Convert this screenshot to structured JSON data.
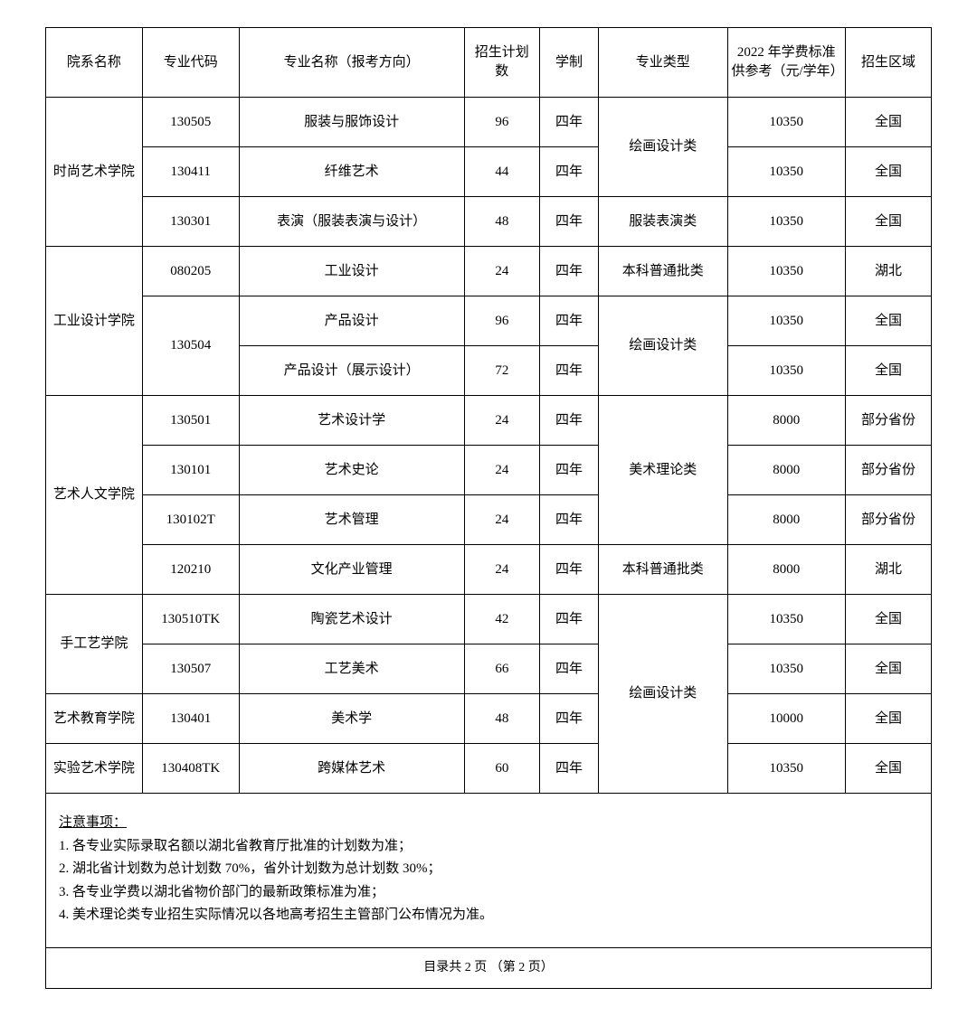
{
  "table": {
    "headers": {
      "dept": "院系名称",
      "code": "专业代码",
      "major": "专业名称（报考方向）",
      "plan": "招生计划数",
      "dur": "学制",
      "type": "专业类型",
      "fee": "2022 年学费标准供参考（元/学年）",
      "region": "招生区域"
    }
  },
  "depts": {
    "d1": "时尚艺术学院",
    "d2": "工业设计学院",
    "d3": "艺术人文学院",
    "d4": "手工艺学院",
    "d5": "艺术教育学院",
    "d6": "实验艺术学院"
  },
  "types": {
    "t1": "绘画设计类",
    "t2": "服装表演类",
    "t3": "本科普通批类",
    "t4": "美术理论类"
  },
  "rows": {
    "r1": {
      "code": "130505",
      "major": "服装与服饰设计",
      "plan": "96",
      "dur": "四年",
      "fee": "10350",
      "region": "全国"
    },
    "r2": {
      "code": "130411",
      "major": "纤维艺术",
      "plan": "44",
      "dur": "四年",
      "fee": "10350",
      "region": "全国"
    },
    "r3": {
      "code": "130301",
      "major": "表演（服装表演与设计）",
      "plan": "48",
      "dur": "四年",
      "fee": "10350",
      "region": "全国"
    },
    "r4": {
      "code": "080205",
      "major": "工业设计",
      "plan": "24",
      "dur": "四年",
      "fee": "10350",
      "region": "湖北"
    },
    "r5": {
      "code": "130504",
      "major": "产品设计",
      "plan": "96",
      "dur": "四年",
      "fee": "10350",
      "region": "全国"
    },
    "r6": {
      "major": "产品设计（展示设计）",
      "plan": "72",
      "dur": "四年",
      "fee": "10350",
      "region": "全国"
    },
    "r7": {
      "code": "130501",
      "major": "艺术设计学",
      "plan": "24",
      "dur": "四年",
      "fee": "8000",
      "region": "部分省份"
    },
    "r8": {
      "code": "130101",
      "major": "艺术史论",
      "plan": "24",
      "dur": "四年",
      "fee": "8000",
      "region": "部分省份"
    },
    "r9": {
      "code": "130102T",
      "major": "艺术管理",
      "plan": "24",
      "dur": "四年",
      "fee": "8000",
      "region": "部分省份"
    },
    "r10": {
      "code": "120210",
      "major": "文化产业管理",
      "plan": "24",
      "dur": "四年",
      "fee": "8000",
      "region": "湖北"
    },
    "r11": {
      "code": "130510TK",
      "major": "陶瓷艺术设计",
      "plan": "42",
      "dur": "四年",
      "fee": "10350",
      "region": "全国"
    },
    "r12": {
      "code": "130507",
      "major": "工艺美术",
      "plan": "66",
      "dur": "四年",
      "fee": "10350",
      "region": "全国"
    },
    "r13": {
      "code": "130401",
      "major": "美术学",
      "plan": "48",
      "dur": "四年",
      "fee": "10000",
      "region": "全国"
    },
    "r14": {
      "code": "130408TK",
      "major": "跨媒体艺术",
      "plan": "60",
      "dur": "四年",
      "fee": "10350",
      "region": "全国"
    }
  },
  "notes": {
    "title": "注意事项：",
    "n1": "1. 各专业实际录取名额以湖北省教育厅批准的计划数为准；",
    "n2": "2. 湖北省计划数为总计划数 70%，省外计划数为总计划数 30%；",
    "n3": "3. 各专业学费以湖北省物价部门的最新政策标准为准；",
    "n4": "4. 美术理论类专业招生实际情况以各地高考招生主管部门公布情况为准。"
  },
  "pager": "目录共 2 页 （第 2 页）"
}
